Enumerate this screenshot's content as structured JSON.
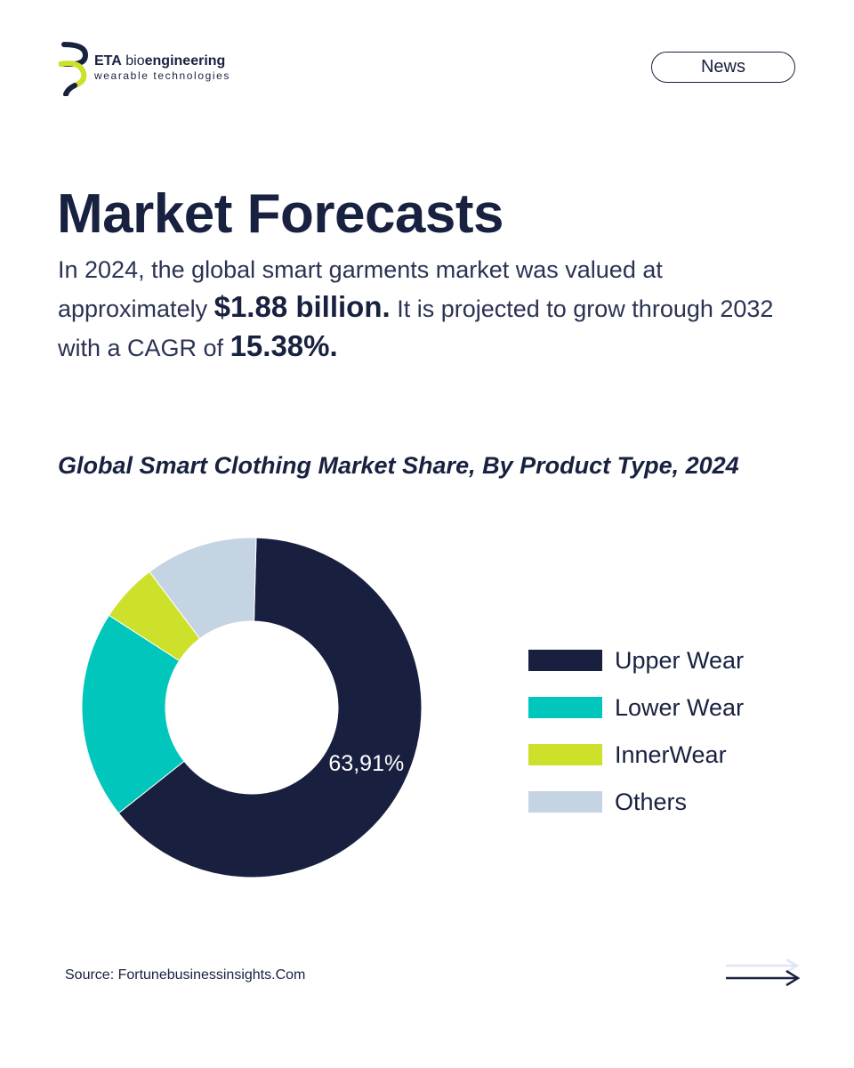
{
  "brand": {
    "name_strong": "ETA",
    "name_light": "bio",
    "name_bold": "engineering",
    "tagline": "wearable technologies"
  },
  "news_button": {
    "label": "News"
  },
  "heading": {
    "title": "Market Forecasts"
  },
  "intro": {
    "p1": "In 2024, the global smart garments market was valued at approximately",
    "highlight1": "$1.88 billion.",
    "p2": "It is projected to grow through 2032 with a CAGR of",
    "highlight2": "15.38%."
  },
  "chart_data": {
    "type": "pie",
    "title": "Global Smart Clothing Market Share, By Product Type, 2024",
    "donut": true,
    "categories": [
      "Upper Wear",
      "Lower Wear",
      "InnerWear",
      "Others"
    ],
    "values": [
      63.91,
      19.8,
      5.6,
      10.69
    ],
    "colors": [
      "#19203f",
      "#00c6bb",
      "#cde02a",
      "#c5d4e3"
    ],
    "data_labels": [
      "63,91%",
      "",
      "",
      ""
    ],
    "legend_position": "right"
  },
  "footer": {
    "source": "Source: Fortunebusinessinsights.Com"
  },
  "icons": {
    "logo": "eta-logo-icon",
    "next": "arrow-right-icon"
  }
}
